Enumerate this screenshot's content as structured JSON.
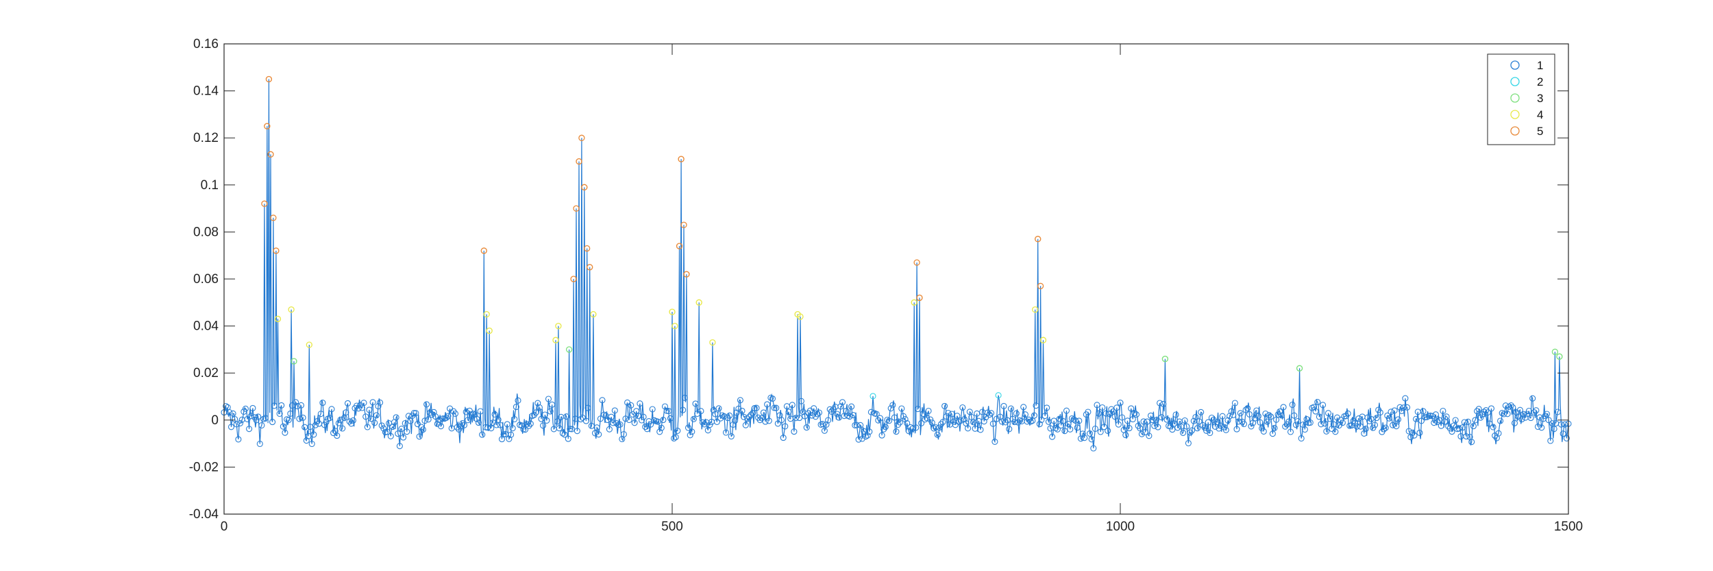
{
  "chart_data": {
    "type": "line",
    "title": "",
    "xlabel": "",
    "ylabel": "",
    "xlim": [
      0,
      1500
    ],
    "ylim": [
      -0.04,
      0.16
    ],
    "xticks": [
      0,
      500,
      1000,
      1500
    ],
    "yticks": [
      -0.04,
      -0.02,
      0,
      0.02,
      0.04,
      0.06,
      0.08,
      0.1,
      0.12,
      0.14,
      0.16
    ],
    "xtick_labels": [
      "0",
      "500",
      "1000",
      "1500"
    ],
    "ytick_labels": [
      "-0.04",
      "-0.02",
      "0",
      "0.02",
      "0.04",
      "0.06",
      "0.08",
      "0.1",
      "0.12",
      "0.14",
      "0.16"
    ],
    "grid": false,
    "legend_position": "top-right",
    "line_color": "#1f77d0",
    "series": [
      {
        "name": "1",
        "color": "#2a7fd4",
        "threshold_max": 0.01
      },
      {
        "name": "2",
        "color": "#35d6e6",
        "threshold_max": 0.02
      },
      {
        "name": "3",
        "color": "#7ee07e",
        "threshold_max": 0.03
      },
      {
        "name": "4",
        "color": "#e8e84a",
        "threshold_max": 0.05
      },
      {
        "name": "5",
        "color": "#e88a3a",
        "threshold_max": 1
      }
    ],
    "peaks": [
      {
        "x": 50,
        "y": 0.145
      },
      {
        "x": 48,
        "y": 0.125
      },
      {
        "x": 45,
        "y": 0.092
      },
      {
        "x": 52,
        "y": 0.113
      },
      {
        "x": 55,
        "y": 0.086
      },
      {
        "x": 58,
        "y": 0.072
      },
      {
        "x": 60,
        "y": 0.043
      },
      {
        "x": 75,
        "y": 0.047
      },
      {
        "x": 78,
        "y": 0.025
      },
      {
        "x": 95,
        "y": 0.032
      },
      {
        "x": 290,
        "y": 0.072
      },
      {
        "x": 293,
        "y": 0.045
      },
      {
        "x": 296,
        "y": 0.038
      },
      {
        "x": 370,
        "y": 0.034
      },
      {
        "x": 373,
        "y": 0.04
      },
      {
        "x": 385,
        "y": 0.03
      },
      {
        "x": 390,
        "y": 0.06
      },
      {
        "x": 393,
        "y": 0.09
      },
      {
        "x": 396,
        "y": 0.11
      },
      {
        "x": 399,
        "y": 0.12
      },
      {
        "x": 402,
        "y": 0.099
      },
      {
        "x": 405,
        "y": 0.073
      },
      {
        "x": 408,
        "y": 0.065
      },
      {
        "x": 412,
        "y": 0.045
      },
      {
        "x": 500,
        "y": 0.046
      },
      {
        "x": 503,
        "y": 0.04
      },
      {
        "x": 508,
        "y": 0.074
      },
      {
        "x": 510,
        "y": 0.111
      },
      {
        "x": 513,
        "y": 0.083
      },
      {
        "x": 516,
        "y": 0.062
      },
      {
        "x": 530,
        "y": 0.05
      },
      {
        "x": 545,
        "y": 0.033
      },
      {
        "x": 640,
        "y": 0.045
      },
      {
        "x": 643,
        "y": 0.044
      },
      {
        "x": 770,
        "y": 0.05
      },
      {
        "x": 773,
        "y": 0.067
      },
      {
        "x": 776,
        "y": 0.052
      },
      {
        "x": 905,
        "y": 0.047
      },
      {
        "x": 908,
        "y": 0.077
      },
      {
        "x": 911,
        "y": 0.057
      },
      {
        "x": 914,
        "y": 0.034
      },
      {
        "x": 1050,
        "y": 0.026
      },
      {
        "x": 1200,
        "y": 0.022
      },
      {
        "x": 1485,
        "y": 0.029
      },
      {
        "x": 1490,
        "y": 0.027
      }
    ]
  }
}
